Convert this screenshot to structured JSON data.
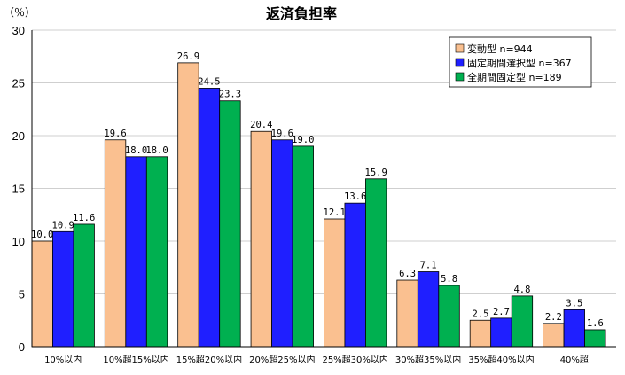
{
  "chart_data": {
    "type": "bar",
    "title": "返済負担率",
    "unit_label": "（％）",
    "categories": [
      "10%以内",
      "10%超15%以内",
      "15%超20%以内",
      "20%超25%以内",
      "25%超30%以内",
      "30%超35%以内",
      "35%超40%以内",
      "40%超"
    ],
    "ylim": [
      0,
      30
    ],
    "yticks": [
      "0",
      "5",
      "10",
      "15",
      "20",
      "25",
      "30"
    ],
    "grid": true,
    "legend_position": "top-right",
    "series": [
      {
        "name": "変動型 n=944",
        "color": "#fac090",
        "values": [
          10.0,
          19.6,
          26.9,
          20.4,
          12.1,
          6.3,
          2.5,
          2.2
        ],
        "labels": [
          "10.0",
          "19.6",
          "26.9",
          "20.4",
          "12.1",
          "6.3",
          "2.5",
          "2.2"
        ]
      },
      {
        "name": "固定期間選択型 n=367",
        "color": "#1f1fff",
        "values": [
          10.9,
          18.0,
          24.5,
          19.6,
          13.6,
          7.1,
          2.7,
          3.5
        ],
        "labels": [
          "10.9",
          "18.0",
          "24.5",
          "19.6",
          "13.6",
          "7.1",
          "2.7",
          "3.5"
        ]
      },
      {
        "name": "全期間固定型 n=189",
        "color": "#00b050",
        "values": [
          11.6,
          18.0,
          23.3,
          19.0,
          15.9,
          5.8,
          4.8,
          1.6
        ],
        "labels": [
          "11.6",
          "18.0",
          "23.3",
          "19.0",
          "15.9",
          "5.8",
          "4.8",
          "1.6"
        ]
      }
    ]
  }
}
